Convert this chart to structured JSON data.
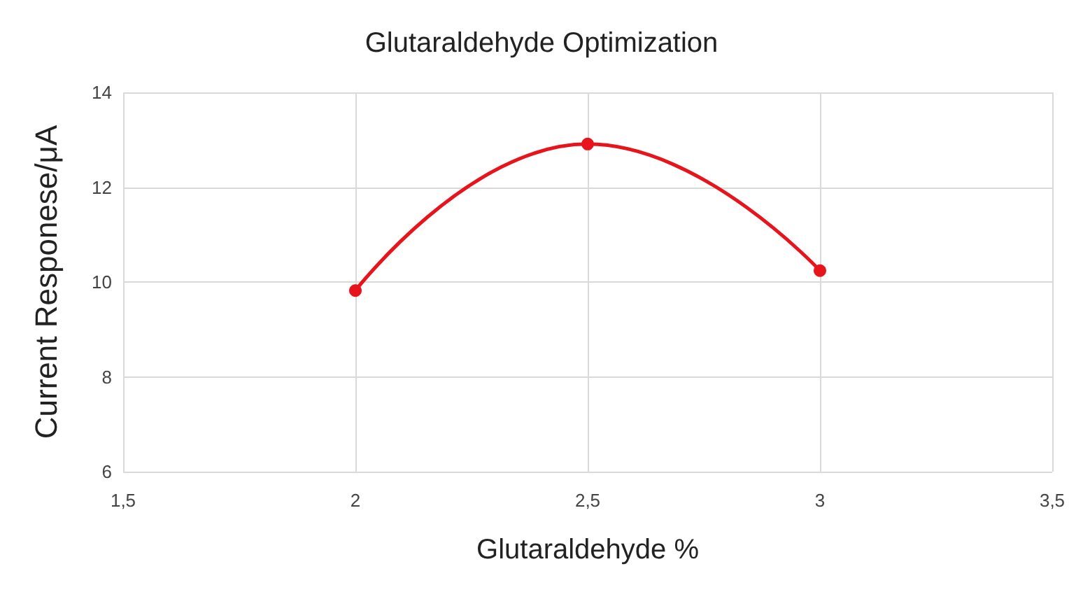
{
  "chart_data": {
    "type": "line",
    "title": "Glutaraldehyde Optimization",
    "xlabel": "Glutaraldehyde %",
    "ylabel": "Current Responese/μA",
    "x": [
      2,
      2.5,
      3
    ],
    "series": [
      {
        "color": "#e8141c",
        "values": [
          9.82,
          12.91,
          10.24
        ]
      }
    ],
    "xlim": [
      1.5,
      3.5
    ],
    "xticks": [
      {
        "value": 1.5,
        "label": "1,5"
      },
      2,
      {
        "value": 2.5,
        "label": "2,5"
      },
      3,
      {
        "value": 3.5,
        "label": "3,5"
      }
    ],
    "ylim": [
      6,
      14
    ],
    "yticks": [
      6,
      8,
      10,
      12,
      14
    ],
    "grid": true,
    "marker": "circle",
    "line_style": "solid"
  }
}
